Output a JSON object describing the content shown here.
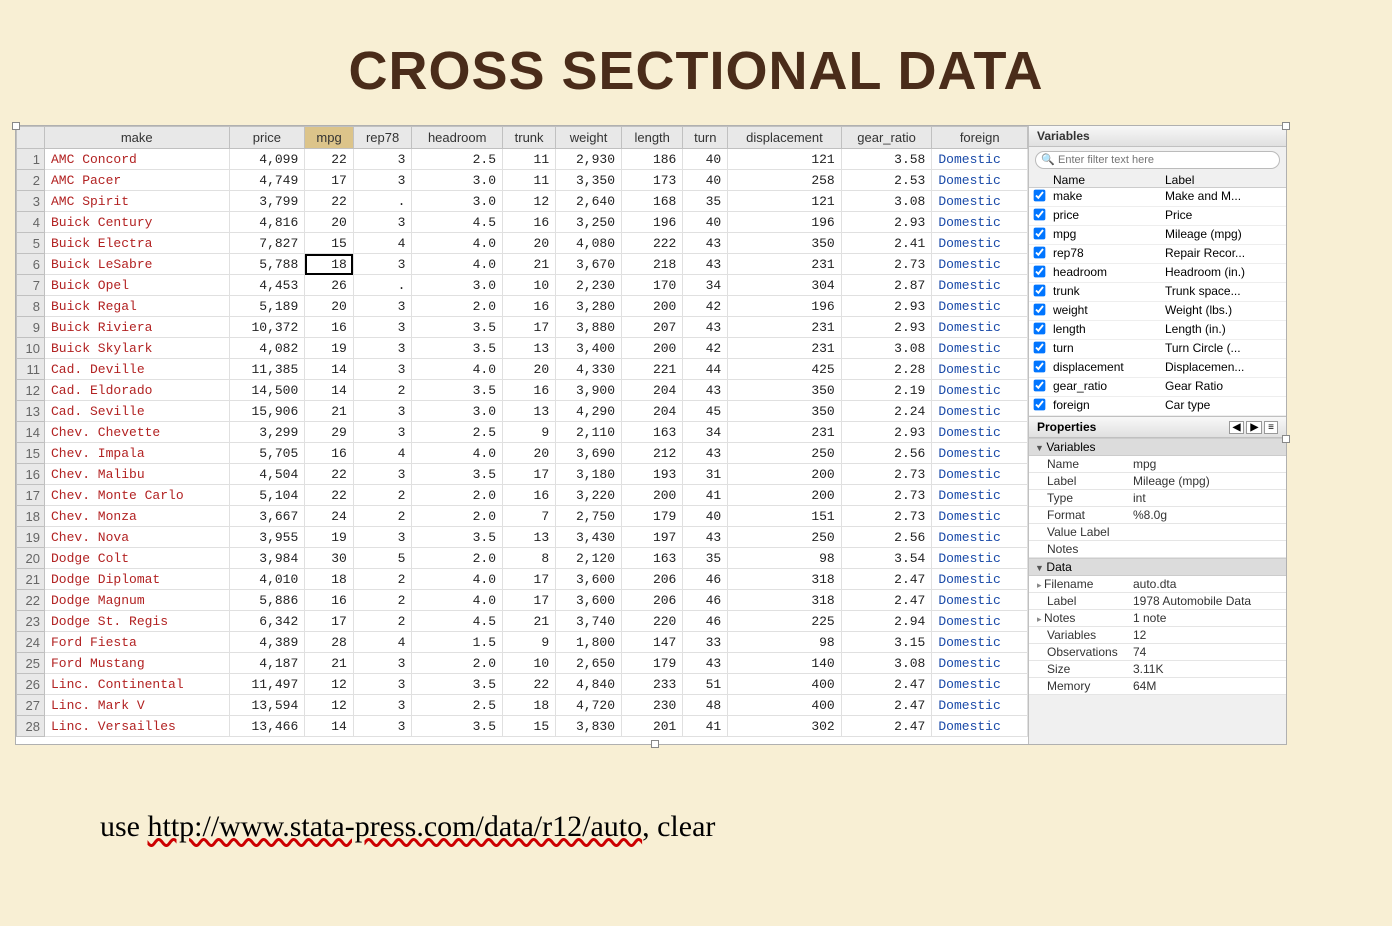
{
  "title": "CROSS SECTIONAL DATA",
  "command": {
    "prefix": "use ",
    "url": "http://www.stata-press.com/data/r12/auto",
    "suffix": ", clear"
  },
  "columns": [
    "make",
    "price",
    "mpg",
    "rep78",
    "headroom",
    "trunk",
    "weight",
    "length",
    "turn",
    "displacement",
    "gear_ratio",
    "foreign"
  ],
  "sorted_column_index": 2,
  "selected_cell": {
    "row": 6,
    "col": "mpg"
  },
  "rows": [
    {
      "n": 1,
      "make": "AMC Concord",
      "price": "4,099",
      "mpg": "22",
      "rep78": "3",
      "headroom": "2.5",
      "trunk": "11",
      "weight": "2,930",
      "length": "186",
      "turn": "40",
      "displacement": "121",
      "gear_ratio": "3.58",
      "foreign": "Domestic"
    },
    {
      "n": 2,
      "make": "AMC Pacer",
      "price": "4,749",
      "mpg": "17",
      "rep78": "3",
      "headroom": "3.0",
      "trunk": "11",
      "weight": "3,350",
      "length": "173",
      "turn": "40",
      "displacement": "258",
      "gear_ratio": "2.53",
      "foreign": "Domestic"
    },
    {
      "n": 3,
      "make": "AMC Spirit",
      "price": "3,799",
      "mpg": "22",
      "rep78": ".",
      "headroom": "3.0",
      "trunk": "12",
      "weight": "2,640",
      "length": "168",
      "turn": "35",
      "displacement": "121",
      "gear_ratio": "3.08",
      "foreign": "Domestic"
    },
    {
      "n": 4,
      "make": "Buick Century",
      "price": "4,816",
      "mpg": "20",
      "rep78": "3",
      "headroom": "4.5",
      "trunk": "16",
      "weight": "3,250",
      "length": "196",
      "turn": "40",
      "displacement": "196",
      "gear_ratio": "2.93",
      "foreign": "Domestic"
    },
    {
      "n": 5,
      "make": "Buick Electra",
      "price": "7,827",
      "mpg": "15",
      "rep78": "4",
      "headroom": "4.0",
      "trunk": "20",
      "weight": "4,080",
      "length": "222",
      "turn": "43",
      "displacement": "350",
      "gear_ratio": "2.41",
      "foreign": "Domestic"
    },
    {
      "n": 6,
      "make": "Buick LeSabre",
      "price": "5,788",
      "mpg": "18",
      "rep78": "3",
      "headroom": "4.0",
      "trunk": "21",
      "weight": "3,670",
      "length": "218",
      "turn": "43",
      "displacement": "231",
      "gear_ratio": "2.73",
      "foreign": "Domestic"
    },
    {
      "n": 7,
      "make": "Buick Opel",
      "price": "4,453",
      "mpg": "26",
      "rep78": ".",
      "headroom": "3.0",
      "trunk": "10",
      "weight": "2,230",
      "length": "170",
      "turn": "34",
      "displacement": "304",
      "gear_ratio": "2.87",
      "foreign": "Domestic"
    },
    {
      "n": 8,
      "make": "Buick Regal",
      "price": "5,189",
      "mpg": "20",
      "rep78": "3",
      "headroom": "2.0",
      "trunk": "16",
      "weight": "3,280",
      "length": "200",
      "turn": "42",
      "displacement": "196",
      "gear_ratio": "2.93",
      "foreign": "Domestic"
    },
    {
      "n": 9,
      "make": "Buick Riviera",
      "price": "10,372",
      "mpg": "16",
      "rep78": "3",
      "headroom": "3.5",
      "trunk": "17",
      "weight": "3,880",
      "length": "207",
      "turn": "43",
      "displacement": "231",
      "gear_ratio": "2.93",
      "foreign": "Domestic"
    },
    {
      "n": 10,
      "make": "Buick Skylark",
      "price": "4,082",
      "mpg": "19",
      "rep78": "3",
      "headroom": "3.5",
      "trunk": "13",
      "weight": "3,400",
      "length": "200",
      "turn": "42",
      "displacement": "231",
      "gear_ratio": "3.08",
      "foreign": "Domestic"
    },
    {
      "n": 11,
      "make": "Cad. Deville",
      "price": "11,385",
      "mpg": "14",
      "rep78": "3",
      "headroom": "4.0",
      "trunk": "20",
      "weight": "4,330",
      "length": "221",
      "turn": "44",
      "displacement": "425",
      "gear_ratio": "2.28",
      "foreign": "Domestic"
    },
    {
      "n": 12,
      "make": "Cad. Eldorado",
      "price": "14,500",
      "mpg": "14",
      "rep78": "2",
      "headroom": "3.5",
      "trunk": "16",
      "weight": "3,900",
      "length": "204",
      "turn": "43",
      "displacement": "350",
      "gear_ratio": "2.19",
      "foreign": "Domestic"
    },
    {
      "n": 13,
      "make": "Cad. Seville",
      "price": "15,906",
      "mpg": "21",
      "rep78": "3",
      "headroom": "3.0",
      "trunk": "13",
      "weight": "4,290",
      "length": "204",
      "turn": "45",
      "displacement": "350",
      "gear_ratio": "2.24",
      "foreign": "Domestic"
    },
    {
      "n": 14,
      "make": "Chev. Chevette",
      "price": "3,299",
      "mpg": "29",
      "rep78": "3",
      "headroom": "2.5",
      "trunk": "9",
      "weight": "2,110",
      "length": "163",
      "turn": "34",
      "displacement": "231",
      "gear_ratio": "2.93",
      "foreign": "Domestic"
    },
    {
      "n": 15,
      "make": "Chev. Impala",
      "price": "5,705",
      "mpg": "16",
      "rep78": "4",
      "headroom": "4.0",
      "trunk": "20",
      "weight": "3,690",
      "length": "212",
      "turn": "43",
      "displacement": "250",
      "gear_ratio": "2.56",
      "foreign": "Domestic"
    },
    {
      "n": 16,
      "make": "Chev. Malibu",
      "price": "4,504",
      "mpg": "22",
      "rep78": "3",
      "headroom": "3.5",
      "trunk": "17",
      "weight": "3,180",
      "length": "193",
      "turn": "31",
      "displacement": "200",
      "gear_ratio": "2.73",
      "foreign": "Domestic"
    },
    {
      "n": 17,
      "make": "Chev. Monte Carlo",
      "price": "5,104",
      "mpg": "22",
      "rep78": "2",
      "headroom": "2.0",
      "trunk": "16",
      "weight": "3,220",
      "length": "200",
      "turn": "41",
      "displacement": "200",
      "gear_ratio": "2.73",
      "foreign": "Domestic"
    },
    {
      "n": 18,
      "make": "Chev. Monza",
      "price": "3,667",
      "mpg": "24",
      "rep78": "2",
      "headroom": "2.0",
      "trunk": "7",
      "weight": "2,750",
      "length": "179",
      "turn": "40",
      "displacement": "151",
      "gear_ratio": "2.73",
      "foreign": "Domestic"
    },
    {
      "n": 19,
      "make": "Chev. Nova",
      "price": "3,955",
      "mpg": "19",
      "rep78": "3",
      "headroom": "3.5",
      "trunk": "13",
      "weight": "3,430",
      "length": "197",
      "turn": "43",
      "displacement": "250",
      "gear_ratio": "2.56",
      "foreign": "Domestic"
    },
    {
      "n": 20,
      "make": "Dodge Colt",
      "price": "3,984",
      "mpg": "30",
      "rep78": "5",
      "headroom": "2.0",
      "trunk": "8",
      "weight": "2,120",
      "length": "163",
      "turn": "35",
      "displacement": "98",
      "gear_ratio": "3.54",
      "foreign": "Domestic"
    },
    {
      "n": 21,
      "make": "Dodge Diplomat",
      "price": "4,010",
      "mpg": "18",
      "rep78": "2",
      "headroom": "4.0",
      "trunk": "17",
      "weight": "3,600",
      "length": "206",
      "turn": "46",
      "displacement": "318",
      "gear_ratio": "2.47",
      "foreign": "Domestic"
    },
    {
      "n": 22,
      "make": "Dodge Magnum",
      "price": "5,886",
      "mpg": "16",
      "rep78": "2",
      "headroom": "4.0",
      "trunk": "17",
      "weight": "3,600",
      "length": "206",
      "turn": "46",
      "displacement": "318",
      "gear_ratio": "2.47",
      "foreign": "Domestic"
    },
    {
      "n": 23,
      "make": "Dodge St. Regis",
      "price": "6,342",
      "mpg": "17",
      "rep78": "2",
      "headroom": "4.5",
      "trunk": "21",
      "weight": "3,740",
      "length": "220",
      "turn": "46",
      "displacement": "225",
      "gear_ratio": "2.94",
      "foreign": "Domestic"
    },
    {
      "n": 24,
      "make": "Ford Fiesta",
      "price": "4,389",
      "mpg": "28",
      "rep78": "4",
      "headroom": "1.5",
      "trunk": "9",
      "weight": "1,800",
      "length": "147",
      "turn": "33",
      "displacement": "98",
      "gear_ratio": "3.15",
      "foreign": "Domestic"
    },
    {
      "n": 25,
      "make": "Ford Mustang",
      "price": "4,187",
      "mpg": "21",
      "rep78": "3",
      "headroom": "2.0",
      "trunk": "10",
      "weight": "2,650",
      "length": "179",
      "turn": "43",
      "displacement": "140",
      "gear_ratio": "3.08",
      "foreign": "Domestic"
    },
    {
      "n": 26,
      "make": "Linc. Continental",
      "price": "11,497",
      "mpg": "12",
      "rep78": "3",
      "headroom": "3.5",
      "trunk": "22",
      "weight": "4,840",
      "length": "233",
      "turn": "51",
      "displacement": "400",
      "gear_ratio": "2.47",
      "foreign": "Domestic"
    },
    {
      "n": 27,
      "make": "Linc. Mark V",
      "price": "13,594",
      "mpg": "12",
      "rep78": "3",
      "headroom": "2.5",
      "trunk": "18",
      "weight": "4,720",
      "length": "230",
      "turn": "48",
      "displacement": "400",
      "gear_ratio": "2.47",
      "foreign": "Domestic"
    },
    {
      "n": 28,
      "make": "Linc. Versailles",
      "price": "13,466",
      "mpg": "14",
      "rep78": "3",
      "headroom": "3.5",
      "trunk": "15",
      "weight": "3,830",
      "length": "201",
      "turn": "41",
      "displacement": "302",
      "gear_ratio": "2.47",
      "foreign": "Domestic"
    }
  ],
  "variables_panel": {
    "title": "Variables",
    "filter_placeholder": "Enter filter text here",
    "name_header": "Name",
    "label_header": "Label",
    "vars": [
      {
        "name": "make",
        "label": "Make and M..."
      },
      {
        "name": "price",
        "label": "Price"
      },
      {
        "name": "mpg",
        "label": "Mileage (mpg)"
      },
      {
        "name": "rep78",
        "label": "Repair Recor..."
      },
      {
        "name": "headroom",
        "label": "Headroom (in.)"
      },
      {
        "name": "trunk",
        "label": "Trunk space..."
      },
      {
        "name": "weight",
        "label": "Weight (lbs.)"
      },
      {
        "name": "length",
        "label": "Length (in.)"
      },
      {
        "name": "turn",
        "label": "Turn Circle (..."
      },
      {
        "name": "displacement",
        "label": "Displacemen..."
      },
      {
        "name": "gear_ratio",
        "label": "Gear Ratio"
      },
      {
        "name": "foreign",
        "label": "Car type"
      }
    ]
  },
  "properties_panel": {
    "title": "Properties",
    "sections": {
      "variables": "Variables",
      "data": "Data"
    },
    "var_props": [
      {
        "k": "Name",
        "v": "mpg"
      },
      {
        "k": "Label",
        "v": "Mileage (mpg)"
      },
      {
        "k": "Type",
        "v": "int"
      },
      {
        "k": "Format",
        "v": "%8.0g"
      },
      {
        "k": "Value Label",
        "v": ""
      },
      {
        "k": "Notes",
        "v": ""
      }
    ],
    "data_props": [
      {
        "k": "Filename",
        "v": "auto.dta",
        "sub": true
      },
      {
        "k": "Label",
        "v": "1978 Automobile Data"
      },
      {
        "k": "Notes",
        "v": "1 note",
        "sub": true
      },
      {
        "k": "Variables",
        "v": "12"
      },
      {
        "k": "Observations",
        "v": "74"
      },
      {
        "k": "Size",
        "v": "3.11K"
      },
      {
        "k": "Memory",
        "v": "64M"
      }
    ]
  }
}
